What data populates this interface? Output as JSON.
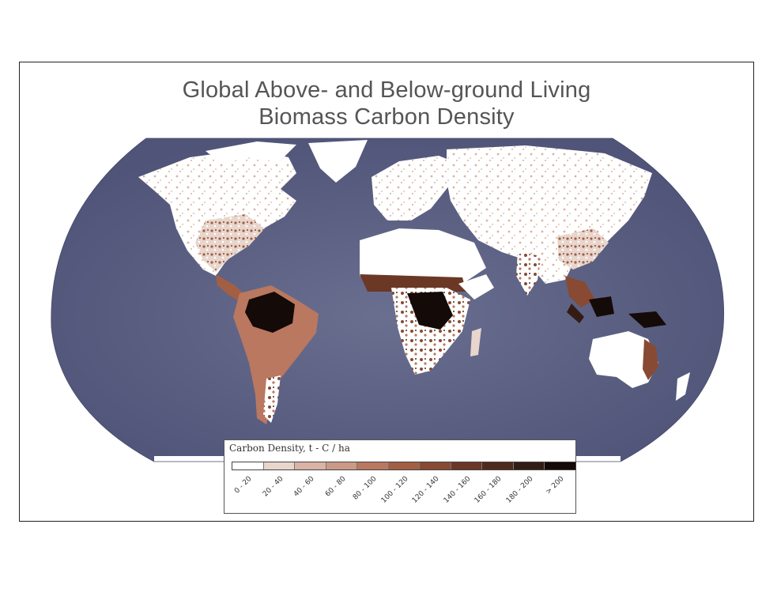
{
  "map": {
    "title_line1": "Global Above- and Below-ground Living",
    "title_line2": "Biomass Carbon Density",
    "ocean_color": "#5d6285",
    "legend": {
      "title": "Carbon Density, t - C / ha",
      "classes": [
        {
          "label": "0 - 20",
          "color": "#ffffff"
        },
        {
          "label": "20 - 40",
          "color": "#e8d5cc"
        },
        {
          "label": "40 - 60",
          "color": "#d9b3a3"
        },
        {
          "label": "60 - 80",
          "color": "#cb9a86"
        },
        {
          "label": "80 - 100",
          "color": "#b9785f"
        },
        {
          "label": "100 - 120",
          "color": "#a25f44"
        },
        {
          "label": "120 - 140",
          "color": "#884a33"
        },
        {
          "label": "140 - 160",
          "color": "#6b3826"
        },
        {
          "label": "160 - 180",
          "color": "#4e2a1d"
        },
        {
          "label": "180 - 200",
          "color": "#331c14"
        },
        {
          "label": "> 200",
          "color": "#140a07"
        }
      ]
    }
  }
}
